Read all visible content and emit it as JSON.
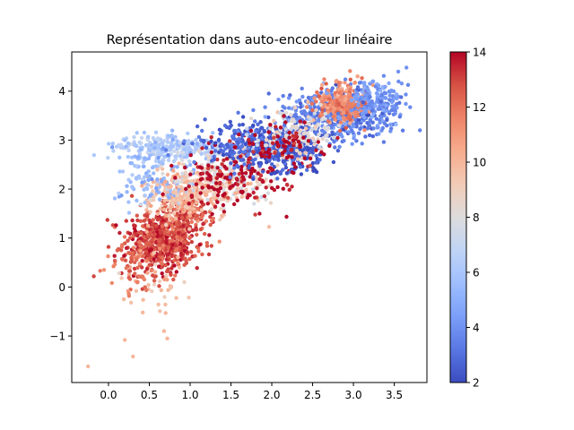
{
  "chart_data": {
    "type": "scatter",
    "title": "Représentation dans auto-encodeur linéaire",
    "xlabel": "",
    "ylabel": "",
    "xlim": [
      -0.45,
      3.9
    ],
    "ylim": [
      -1.95,
      4.8
    ],
    "xticks": [
      "0.0",
      "0.5",
      "1.0",
      "1.5",
      "2.0",
      "2.5",
      "3.0",
      "3.5"
    ],
    "xtick_values": [
      0.0,
      0.5,
      1.0,
      1.5,
      2.0,
      2.5,
      3.0,
      3.5
    ],
    "yticks": [
      "−1",
      "0",
      "1",
      "2",
      "3",
      "4"
    ],
    "ytick_values": [
      -1,
      0,
      1,
      2,
      3,
      4
    ],
    "grid": false,
    "colormap": "coolwarm",
    "colorbar": {
      "min": 2,
      "max": 14,
      "ticks": [
        "2",
        "4",
        "6",
        "8",
        "10",
        "12",
        "14"
      ],
      "tick_values": [
        2,
        4,
        6,
        8,
        10,
        12,
        14
      ],
      "colors": [
        "#3b4cc0",
        "#5977e3",
        "#7b9ff9",
        "#9ebeff",
        "#c0d4f5",
        "#dddcdc",
        "#f2cbb7",
        "#f7ac8e",
        "#ee8468",
        "#d65244",
        "#b40426"
      ]
    },
    "clusters": [
      {
        "value": 13.0,
        "center": [
          0.62,
          0.9
        ],
        "spread": [
          0.22,
          0.32
        ],
        "count": 520
      },
      {
        "value": 12.6,
        "center": [
          0.95,
          1.4
        ],
        "spread": [
          0.18,
          0.3
        ],
        "count": 200
      },
      {
        "value": 10.0,
        "center": [
          0.85,
          1.85
        ],
        "spread": [
          0.18,
          0.25
        ],
        "count": 180
      },
      {
        "value": 9.5,
        "center": [
          0.62,
          0.1
        ],
        "spread": [
          0.22,
          0.3
        ],
        "count": 35
      },
      {
        "value": 12.0,
        "center": [
          0.35,
          0.4
        ],
        "spread": [
          0.2,
          0.35
        ],
        "count": 60
      },
      {
        "value": 6.3,
        "center": [
          0.75,
          2.85
        ],
        "spread": [
          0.35,
          0.12
        ],
        "count": 260
      },
      {
        "value": 5.4,
        "center": [
          0.55,
          2.3
        ],
        "spread": [
          0.25,
          0.3
        ],
        "count": 120
      },
      {
        "value": 8.0,
        "center": [
          1.45,
          2.3
        ],
        "spread": [
          0.35,
          0.3
        ],
        "count": 150
      },
      {
        "value": 9.6,
        "center": [
          1.25,
          2.0
        ],
        "spread": [
          0.3,
          0.25
        ],
        "count": 140
      },
      {
        "value": 14.0,
        "center": [
          1.55,
          2.2
        ],
        "spread": [
          0.4,
          0.35
        ],
        "count": 160
      },
      {
        "value": 2.6,
        "center": [
          1.9,
          2.9
        ],
        "spread": [
          0.35,
          0.22
        ],
        "count": 430
      },
      {
        "value": 2.3,
        "center": [
          2.3,
          2.8
        ],
        "spread": [
          0.18,
          0.22
        ],
        "count": 160
      },
      {
        "value": 3.6,
        "center": [
          2.85,
          3.55
        ],
        "spread": [
          0.35,
          0.25
        ],
        "count": 520
      },
      {
        "value": 11.5,
        "center": [
          2.85,
          3.75
        ],
        "spread": [
          0.15,
          0.2
        ],
        "count": 260
      },
      {
        "value": 4.2,
        "center": [
          3.25,
          3.9
        ],
        "spread": [
          0.18,
          0.18
        ],
        "count": 120
      },
      {
        "value": 8.3,
        "center": [
          2.3,
          3.1
        ],
        "spread": [
          0.25,
          0.25
        ],
        "count": 130
      },
      {
        "value": 14.0,
        "center": [
          2.1,
          2.9
        ],
        "spread": [
          0.25,
          0.2
        ],
        "count": 90
      }
    ],
    "outliers": [
      {
        "x": -0.25,
        "y": -1.62,
        "value": 10.0
      },
      {
        "x": 0.2,
        "y": -1.08,
        "value": 10.0
      },
      {
        "x": 0.3,
        "y": -1.42,
        "value": 10.0
      },
      {
        "x": 0.42,
        "y": -0.52,
        "value": 10.0
      },
      {
        "x": 0.68,
        "y": -0.9,
        "value": 10.0
      },
      {
        "x": 0.72,
        "y": -1.05,
        "value": 10.0
      },
      {
        "x": 0.7,
        "y": -0.53,
        "value": 10.0
      },
      {
        "x": -0.18,
        "y": 0.22,
        "value": 13.0
      },
      {
        "x": 0.0,
        "y": 0.82,
        "value": 13.0
      },
      {
        "x": 3.65,
        "y": 4.48,
        "value": 4.0
      },
      {
        "x": 3.55,
        "y": 4.4,
        "value": 4.0
      }
    ]
  }
}
